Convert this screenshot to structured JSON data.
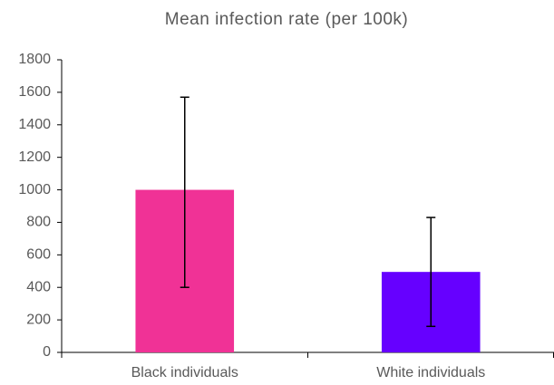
{
  "chart_data": {
    "type": "bar",
    "title": "Mean infection rate (per 100k)",
    "categories": [
      "Black individuals",
      "White individuals"
    ],
    "values": [
      1000,
      495
    ],
    "error_minus": [
      600,
      335
    ],
    "error_plus": [
      570,
      335
    ],
    "colors": [
      "#f03296",
      "#6600ff"
    ],
    "ylim": [
      0,
      1800
    ],
    "yticks": [
      0,
      200,
      400,
      600,
      800,
      1000,
      1200,
      1400,
      1600,
      1800
    ],
    "grid": false
  }
}
